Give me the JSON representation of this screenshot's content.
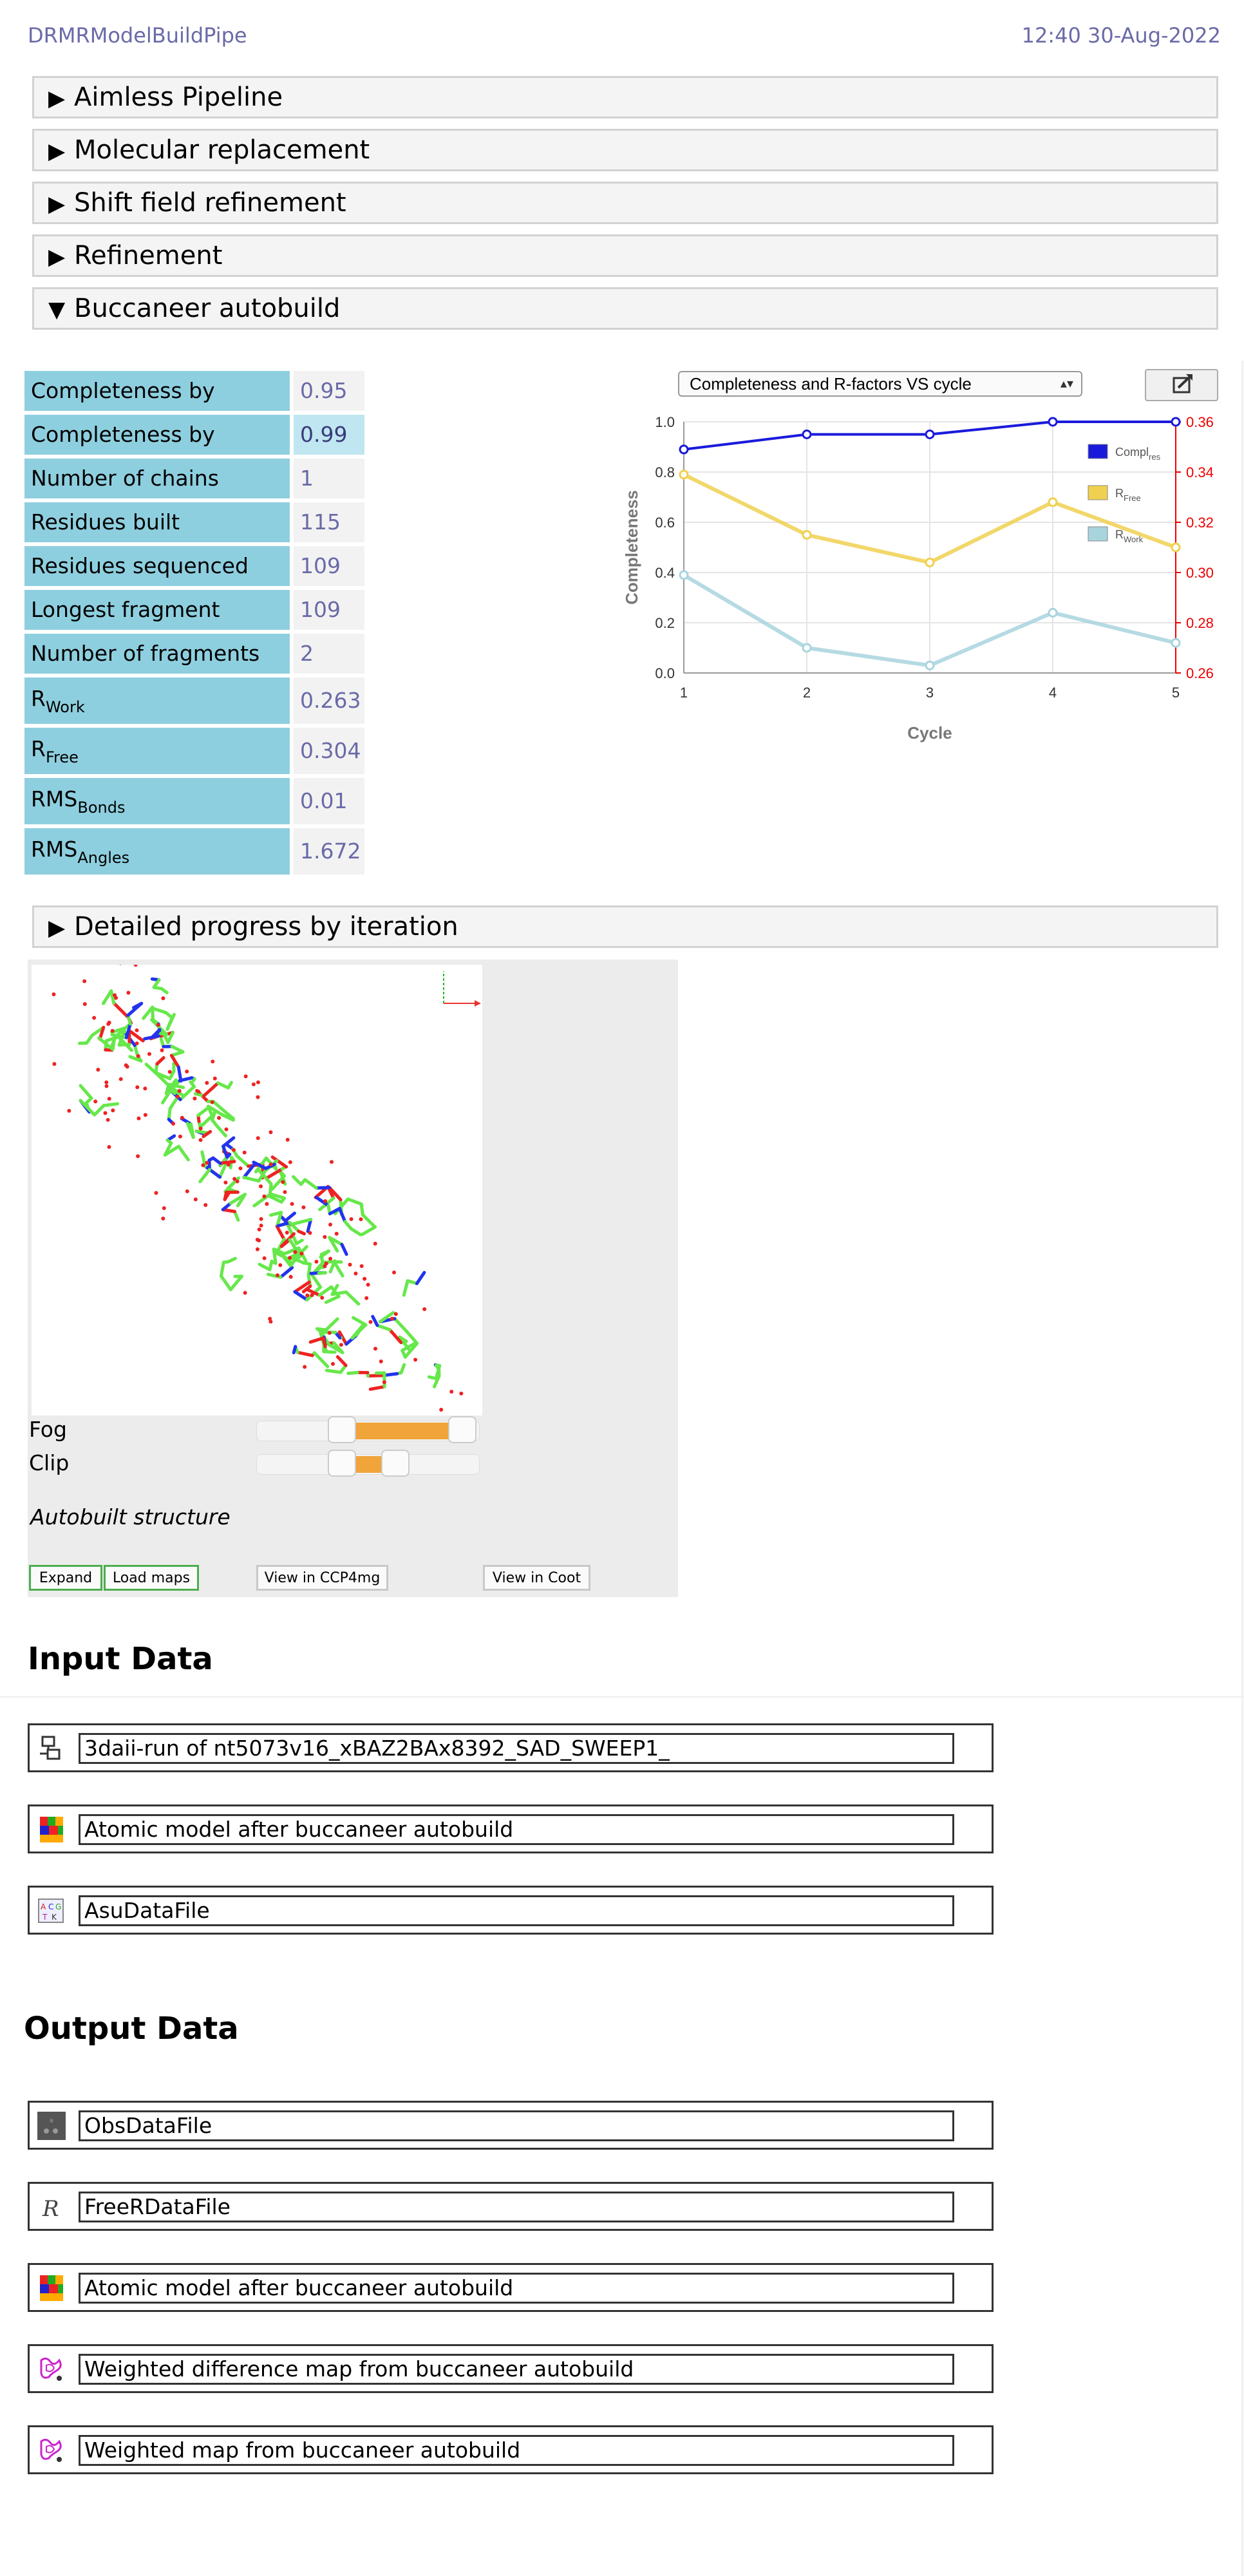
{
  "header": {
    "app_name": "DRMRModelBuildPipe",
    "timestamp": "12:40 30-Aug-2022"
  },
  "folds": [
    {
      "label": "Aimless Pipeline",
      "expanded": false
    },
    {
      "label": "Molecular replacement",
      "expanded": false
    },
    {
      "label": "Shift field refinement",
      "expanded": false
    },
    {
      "label": "Refinement",
      "expanded": false
    },
    {
      "label": "Buccaneer autobuild",
      "expanded": true
    }
  ],
  "stats": {
    "completeness_residue": {
      "label": "Completeness by residue",
      "value": "0.95"
    },
    "completeness_chains": {
      "label": "Completeness by chains",
      "value": "0.99"
    },
    "num_chains": {
      "label": "Number of chains",
      "value": "1"
    },
    "residues_built": {
      "label": "Residues built",
      "value": "115"
    },
    "residues_sequenced": {
      "label": "Residues sequenced",
      "value": "109"
    },
    "longest_fragment": {
      "label": "Longest fragment",
      "value": "109"
    },
    "num_fragments": {
      "label": "Number of fragments",
      "value": "2"
    },
    "rwork": {
      "label_main": "R",
      "label_sub": "Work",
      "value": "0.263"
    },
    "rfree": {
      "label_main": "R",
      "label_sub": "Free",
      "value": "0.304"
    },
    "rms_bonds": {
      "label_main": "RMS",
      "label_sub": "Bonds",
      "value": "0.01"
    },
    "rms_angles": {
      "label_main": "RMS",
      "label_sub": "Angles",
      "value": "1.672"
    }
  },
  "chart_selector": {
    "selected": "Completeness and R-factors VS cycle"
  },
  "chart_data": {
    "type": "line",
    "x": [
      1,
      2,
      3,
      4,
      5
    ],
    "xlabel": "Cycle",
    "ylabel": "Completeness",
    "ylim": [
      0.0,
      1.0
    ],
    "y2lim": [
      0.26,
      0.36
    ],
    "xticks": [
      "1",
      "2",
      "3",
      "4",
      "5"
    ],
    "yticks": [
      "0.0",
      "0.2",
      "0.4",
      "0.6",
      "0.8",
      "1.0"
    ],
    "y2ticks": [
      "0.26",
      "0.28",
      "0.30",
      "0.32",
      "0.34",
      "0.36"
    ],
    "series": [
      {
        "name_main": "Compl",
        "name_sub": "res",
        "axis": "left",
        "color": "#1a1adb",
        "values": [
          0.89,
          0.95,
          0.95,
          1.0,
          1.0
        ]
      },
      {
        "name_main": "R",
        "name_sub": "Free",
        "axis": "right",
        "color": "#f0d050",
        "values": [
          0.339,
          0.315,
          0.304,
          0.328,
          0.31
        ]
      },
      {
        "name_main": "R",
        "name_sub": "Work",
        "axis": "right",
        "color": "#a8d4de",
        "values": [
          0.299,
          0.27,
          0.263,
          0.284,
          0.272
        ]
      }
    ],
    "grid": true,
    "legend_position": "top-right"
  },
  "detailed_progress": {
    "label": "Detailed progress by iteration",
    "expanded": false
  },
  "viewer": {
    "fog_label": "Fog",
    "clip_label": "Clip",
    "fog_range": [
      0.38,
      0.92
    ],
    "clip_range": [
      0.38,
      0.62
    ],
    "caption": "Autobuilt structure",
    "buttons": {
      "expand": "Expand",
      "load_maps": "Load maps",
      "ccp4mg": "View in CCP4mg",
      "coot": "View in Coot"
    }
  },
  "input_section": {
    "title": "Input Data",
    "items": [
      {
        "icon": "sequence-icon",
        "label": "3daii-run of nt5073v16_xBAZ2BAx8392_SAD_SWEEP1_"
      },
      {
        "icon": "atomic-model-icon",
        "label": "Atomic model after buccaneer autobuild"
      },
      {
        "icon": "asu-data-icon",
        "label": "AsuDataFile"
      }
    ]
  },
  "output_section": {
    "title": "Output Data",
    "items": [
      {
        "icon": "obs-data-icon",
        "label": "ObsDataFile"
      },
      {
        "icon": "freer-icon",
        "label": "FreeRDataFile"
      },
      {
        "icon": "atomic-model-icon",
        "label": "Atomic model after buccaneer autobuild"
      },
      {
        "icon": "map-icon",
        "label": "Weighted difference map from buccaneer autobuild"
      },
      {
        "icon": "map-icon",
        "label": "Weighted map from buccaneer autobuild"
      }
    ]
  }
}
